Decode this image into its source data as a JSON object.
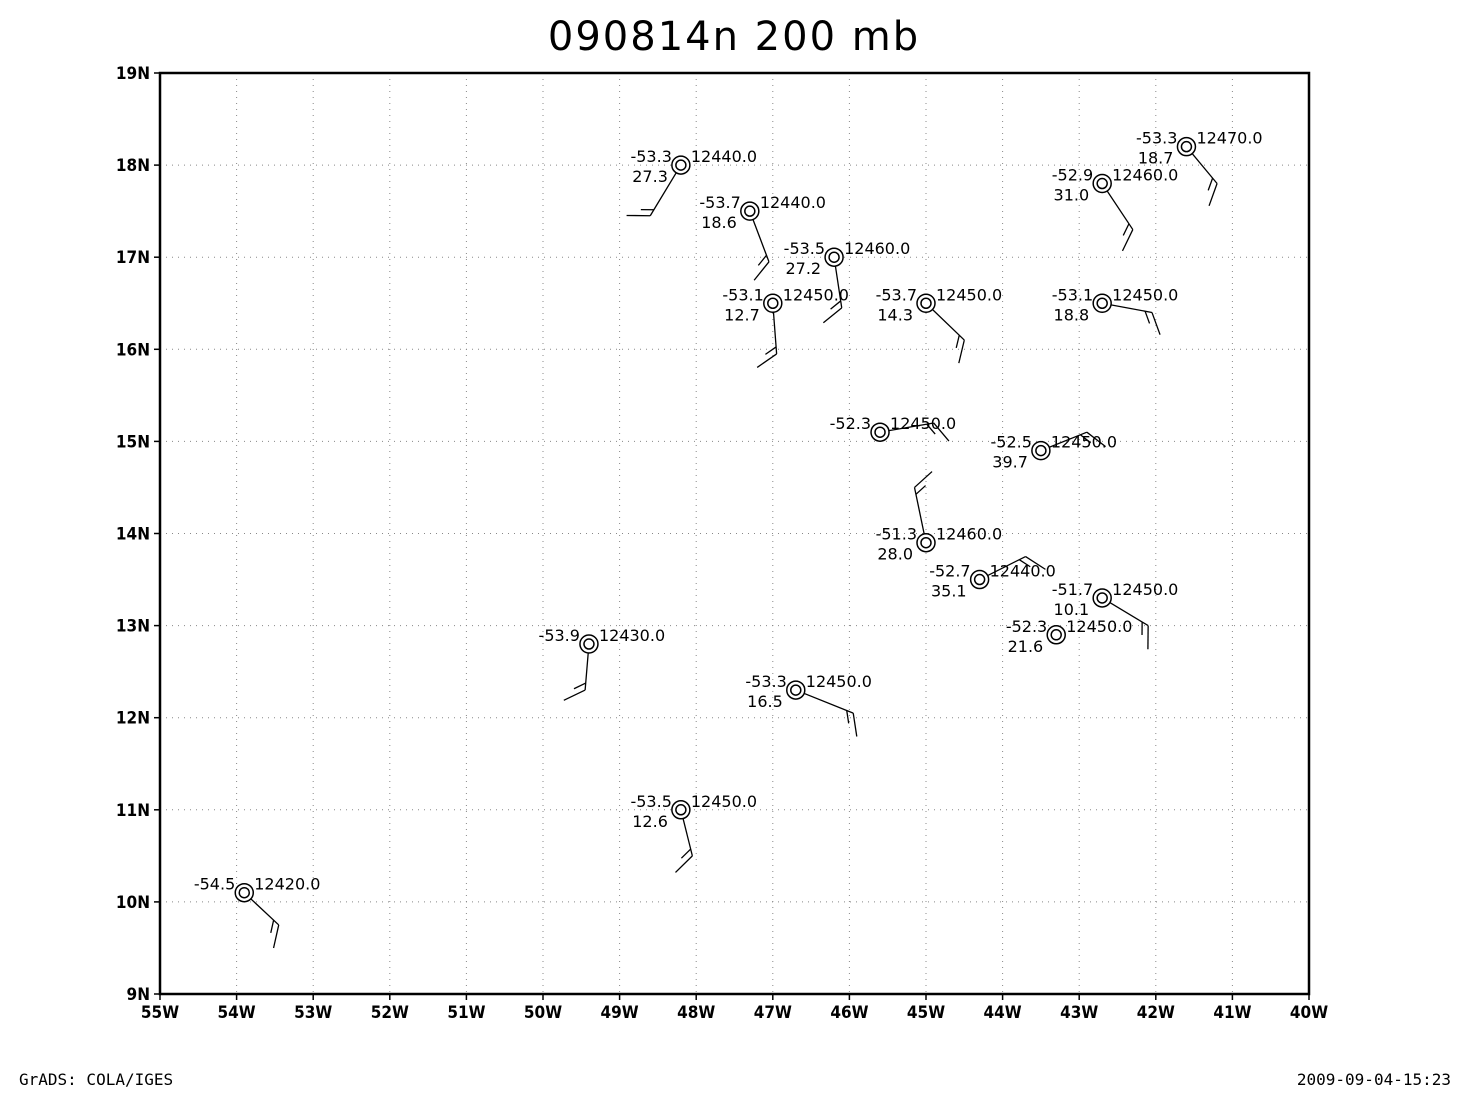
{
  "title": "090814n 200 mb",
  "footer": {
    "left": "GrADS: COLA/IGES",
    "right": "2009-09-04-15:23"
  },
  "axes": {
    "lon_range": [
      -55,
      -40
    ],
    "lat_range": [
      9,
      19
    ],
    "x_ticks": [
      "55W",
      "54W",
      "53W",
      "52W",
      "51W",
      "50W",
      "49W",
      "48W",
      "47W",
      "46W",
      "45W",
      "44W",
      "43W",
      "42W",
      "41W",
      "40W"
    ],
    "y_ticks": [
      "9N",
      "10N",
      "11N",
      "12N",
      "13N",
      "14N",
      "15N",
      "16N",
      "17N",
      "18N",
      "19N"
    ],
    "grid": "dotted"
  },
  "stations": [
    {
      "lon": -41.6,
      "lat": 18.2,
      "temp": "-53.3",
      "height": "12470.0",
      "dew": "18.7",
      "wind_to": [
        -41.2,
        17.8
      ]
    },
    {
      "lon": -42.7,
      "lat": 17.8,
      "temp": "-52.9",
      "height": "12460.0",
      "dew": "31.0",
      "wind_to": [
        -42.3,
        17.3
      ]
    },
    {
      "lon": -48.2,
      "lat": 18.0,
      "temp": "-53.3",
      "height": "12440.0",
      "dew": "27.3",
      "wind_to": [
        -48.6,
        17.45
      ]
    },
    {
      "lon": -47.3,
      "lat": 17.5,
      "temp": "-53.7",
      "height": "12440.0",
      "dew": "18.6",
      "wind_to": [
        -47.05,
        16.95
      ]
    },
    {
      "lon": -46.2,
      "lat": 17.0,
      "temp": "-53.5",
      "height": "12460.0",
      "dew": "27.2",
      "wind_to": [
        -46.1,
        16.45
      ]
    },
    {
      "lon": -47.0,
      "lat": 16.5,
      "temp": "-53.1",
      "height": "12450.0",
      "dew": "12.7",
      "wind_to": [
        -46.95,
        15.95
      ]
    },
    {
      "lon": -45.0,
      "lat": 16.5,
      "temp": "-53.7",
      "height": "12450.0",
      "dew": "14.3",
      "wind_to": [
        -44.5,
        16.1
      ]
    },
    {
      "lon": -42.7,
      "lat": 16.5,
      "temp": "-53.1",
      "height": "12450.0",
      "dew": "18.8",
      "wind_to": [
        -42.05,
        16.4
      ]
    },
    {
      "lon": -45.6,
      "lat": 15.1,
      "temp": "-52.3",
      "height": "12450.0",
      "dew": "",
      "wind_to": [
        -44.9,
        15.2
      ]
    },
    {
      "lon": -43.5,
      "lat": 14.9,
      "temp": "-52.5",
      "height": "12450.0",
      "dew": "39.7",
      "wind_to": [
        -42.9,
        15.1
      ]
    },
    {
      "lon": -45.0,
      "lat": 13.9,
      "temp": "-51.3",
      "height": "12460.0",
      "dew": "28.0",
      "wind_to": [
        -45.15,
        14.5
      ]
    },
    {
      "lon": -44.3,
      "lat": 13.5,
      "temp": "-52.7",
      "height": "12440.0",
      "dew": "35.1",
      "wind_to": [
        -43.7,
        13.75
      ]
    },
    {
      "lon": -42.7,
      "lat": 13.3,
      "temp": "-51.7",
      "height": "12450.0",
      "dew": "10.1",
      "wind_to": [
        -42.1,
        13.0
      ]
    },
    {
      "lon": -43.3,
      "lat": 12.9,
      "temp": "-52.3",
      "height": "12450.0",
      "dew": "21.6",
      "wind_to": null
    },
    {
      "lon": -49.4,
      "lat": 12.8,
      "temp": "-53.9",
      "height": "12430.0",
      "dew": "",
      "wind_to": [
        -49.45,
        12.3
      ]
    },
    {
      "lon": -46.7,
      "lat": 12.3,
      "temp": "-53.3",
      "height": "12450.0",
      "dew": "16.5",
      "wind_to": [
        -45.95,
        12.05
      ]
    },
    {
      "lon": -48.2,
      "lat": 11.0,
      "temp": "-53.5",
      "height": "12450.0",
      "dew": "12.6",
      "wind_to": [
        -48.05,
        10.5
      ]
    },
    {
      "lon": -53.9,
      "lat": 10.1,
      "temp": "-54.5",
      "height": "12420.0",
      "dew": "",
      "wind_to": [
        -53.45,
        9.75
      ]
    }
  ]
}
